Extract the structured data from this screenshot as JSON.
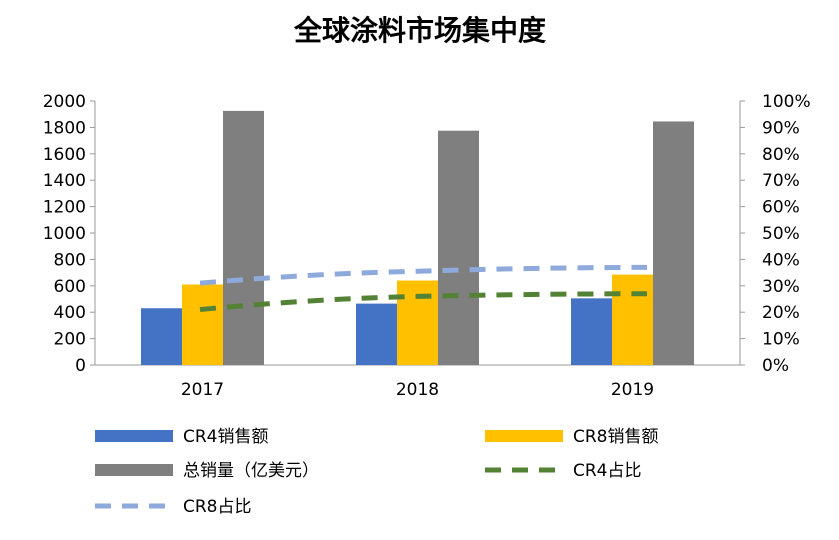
{
  "chart_data": {
    "type": "bar",
    "title": "全球涂料市场集中度",
    "categories": [
      "2017",
      "2018",
      "2019"
    ],
    "series": [
      {
        "name": "CR4销售额",
        "kind": "bar",
        "axis": "left",
        "color": "#4472C4",
        "values": [
          430,
          465,
          505
        ]
      },
      {
        "name": "CR8销售额",
        "kind": "bar",
        "axis": "left",
        "color": "#FFC000",
        "values": [
          610,
          640,
          685
        ]
      },
      {
        "name": "总销量（亿美元）",
        "kind": "bar",
        "axis": "left",
        "color": "#7F7F7F",
        "values": [
          1925,
          1775,
          1845
        ]
      },
      {
        "name": "CR4占比",
        "kind": "line",
        "axis": "right",
        "color": "#548235",
        "dash": "dashed",
        "values": [
          0.21,
          0.26,
          0.27
        ]
      },
      {
        "name": "CR8占比",
        "kind": "line",
        "axis": "right",
        "color": "#8EA9DB",
        "dash": "dashed",
        "values": [
          0.31,
          0.355,
          0.37
        ]
      }
    ],
    "y_left": {
      "min": 0,
      "max": 2000,
      "step": 200,
      "ticks": [
        "0",
        "200",
        "400",
        "600",
        "800",
        "1000",
        "1200",
        "1400",
        "1600",
        "1800",
        "2000"
      ]
    },
    "y_right": {
      "min": 0,
      "max": 1,
      "step": 0.1,
      "ticks": [
        "0%",
        "10%",
        "20%",
        "30%",
        "40%",
        "50%",
        "60%",
        "70%",
        "80%",
        "90%",
        "100%"
      ]
    },
    "grid": false,
    "legend_position": "bottom"
  }
}
